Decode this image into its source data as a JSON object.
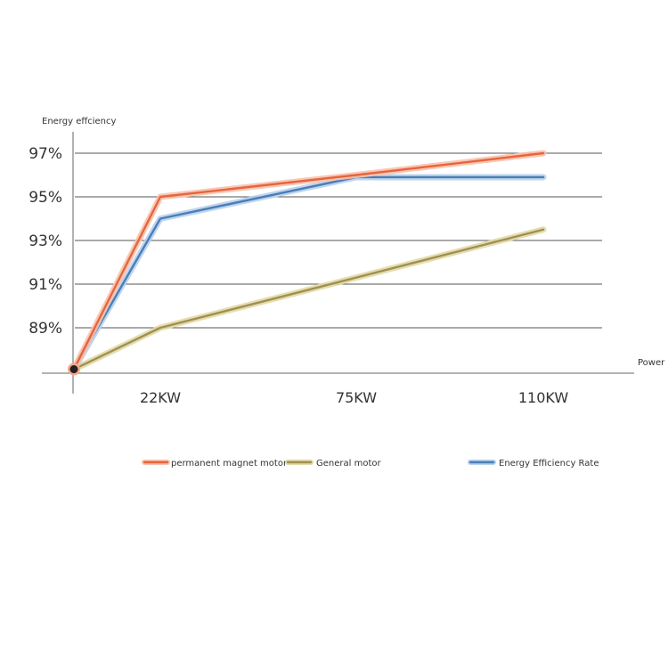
{
  "chart_data": {
    "type": "line",
    "xlabel": "Power",
    "ylabel": "Energy effciency",
    "categories": [
      "",
      "22KW",
      "75KW",
      "110KW"
    ],
    "y_ticks": [
      "89%",
      "91%",
      "93%",
      "95%",
      "97%"
    ],
    "ylim": [
      87,
      98
    ],
    "grid": true,
    "legend_position": "bottom",
    "series": [
      {
        "name": "permanent magnet motor",
        "color": "#E8643C",
        "glow": "#F7C2AD",
        "values": [
          87.1,
          95.0,
          96.0,
          97.0
        ]
      },
      {
        "name": "General motor",
        "color": "#A09050",
        "glow": "#E2D9A8",
        "values": [
          87.1,
          89.0,
          91.3,
          93.5
        ]
      },
      {
        "name": "Energy Efficiency Rate",
        "color": "#4A7DB8",
        "glow": "#B7D0EC",
        "values": [
          87.1,
          94.0,
          95.9,
          95.9
        ]
      }
    ]
  }
}
